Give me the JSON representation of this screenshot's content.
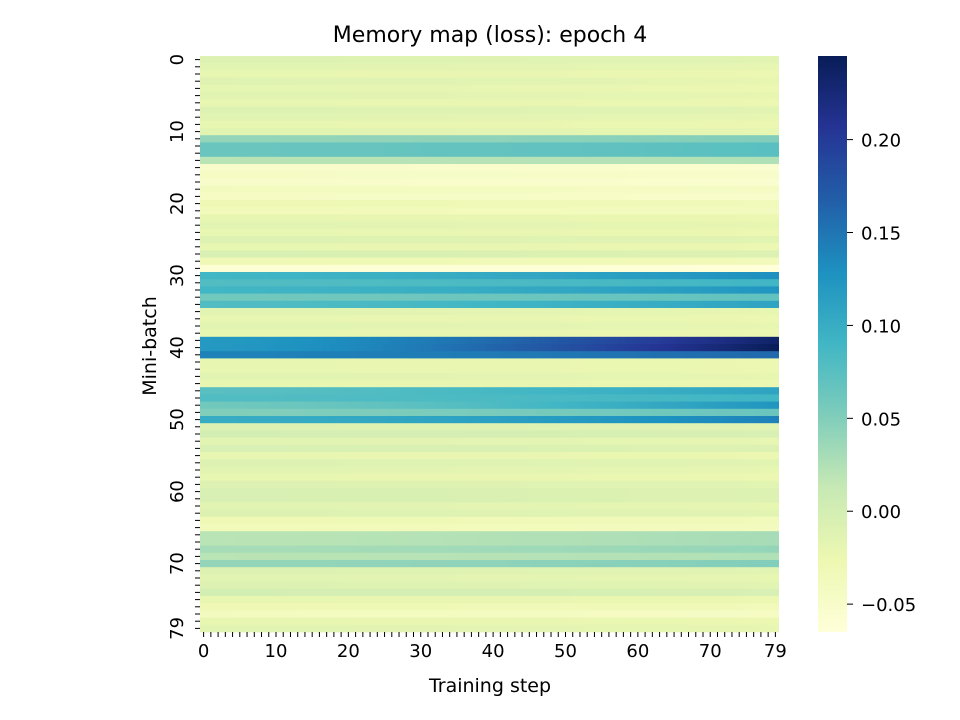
{
  "chart_data": {
    "type": "heatmap",
    "title": "Memory map (loss): epoch 4",
    "xlabel": "Training step",
    "ylabel": "Mini-batch",
    "n_rows": 80,
    "n_cols": 80,
    "x_ticklabels": [
      "0",
      "10",
      "20",
      "30",
      "40",
      "50",
      "60",
      "70",
      "79"
    ],
    "x_tick_values": [
      0,
      10,
      20,
      30,
      40,
      50,
      60,
      70,
      79
    ],
    "y_ticklabels": [
      "0",
      "10",
      "20",
      "30",
      "40",
      "50",
      "60",
      "70",
      "79"
    ],
    "y_tick_values": [
      0,
      10,
      20,
      30,
      40,
      50,
      60,
      70,
      79
    ],
    "colorbar": {
      "vmin": -0.065,
      "vmax": 0.245,
      "ticks": [
        -0.05,
        0.0,
        0.05,
        0.1,
        0.15,
        0.2
      ],
      "ticklabels": [
        "−0.05",
        "0.00",
        "0.05",
        "0.10",
        "0.15",
        "0.20"
      ]
    },
    "colormap": "YlGnBu",
    "colormap_stops": [
      [
        0.0,
        "#ffffd9"
      ],
      [
        0.125,
        "#edf8b1"
      ],
      [
        0.25,
        "#c7e9b4"
      ],
      [
        0.375,
        "#7fcdbb"
      ],
      [
        0.5,
        "#41b6c4"
      ],
      [
        0.625,
        "#1d91c0"
      ],
      [
        0.75,
        "#225ea8"
      ],
      [
        0.875,
        "#253494"
      ],
      [
        1.0,
        "#081d58"
      ]
    ],
    "row_loss_start": [
      -0.01,
      -0.015,
      -0.02,
      -0.012,
      -0.018,
      -0.015,
      -0.02,
      -0.01,
      -0.015,
      -0.02,
      -0.015,
      0.04,
      0.065,
      0.065,
      0.02,
      -0.05,
      -0.045,
      -0.05,
      -0.04,
      -0.045,
      -0.03,
      -0.035,
      -0.02,
      -0.015,
      -0.02,
      -0.01,
      -0.02,
      -0.005,
      -0.03,
      -0.06,
      0.09,
      0.08,
      0.09,
      0.06,
      0.08,
      -0.015,
      -0.02,
      -0.015,
      -0.02,
      0.12,
      0.12,
      0.14,
      -0.02,
      -0.02,
      -0.015,
      -0.02,
      0.075,
      0.08,
      0.06,
      0.05,
      0.1,
      -0.01,
      0.0,
      -0.015,
      -0.005,
      -0.02,
      -0.01,
      -0.015,
      -0.02,
      -0.01,
      -0.005,
      -0.005,
      -0.015,
      -0.01,
      -0.03,
      -0.035,
      0.02,
      0.02,
      0.03,
      0.02,
      0.04,
      -0.01,
      -0.015,
      -0.01,
      0.0,
      -0.02,
      -0.03,
      -0.04,
      -0.02,
      -0.015
    ],
    "row_loss_end": [
      -0.015,
      -0.02,
      -0.025,
      -0.02,
      -0.025,
      -0.02,
      -0.025,
      -0.015,
      -0.02,
      -0.025,
      -0.02,
      0.05,
      0.075,
      0.075,
      0.025,
      -0.055,
      -0.05,
      -0.055,
      -0.045,
      -0.05,
      -0.035,
      -0.04,
      -0.025,
      -0.02,
      -0.025,
      -0.015,
      -0.025,
      -0.01,
      -0.035,
      -0.065,
      0.13,
      0.09,
      0.125,
      0.07,
      0.11,
      -0.02,
      -0.025,
      -0.02,
      -0.025,
      0.235,
      0.245,
      0.16,
      -0.025,
      -0.025,
      -0.02,
      -0.025,
      0.11,
      0.09,
      0.125,
      0.065,
      0.14,
      -0.015,
      -0.005,
      -0.02,
      -0.01,
      -0.025,
      -0.015,
      -0.02,
      -0.025,
      -0.015,
      -0.01,
      -0.01,
      -0.02,
      -0.015,
      -0.035,
      -0.04,
      0.03,
      0.03,
      0.04,
      0.025,
      0.05,
      -0.015,
      -0.02,
      -0.015,
      -0.005,
      -0.025,
      -0.035,
      -0.045,
      -0.025,
      -0.02
    ]
  }
}
